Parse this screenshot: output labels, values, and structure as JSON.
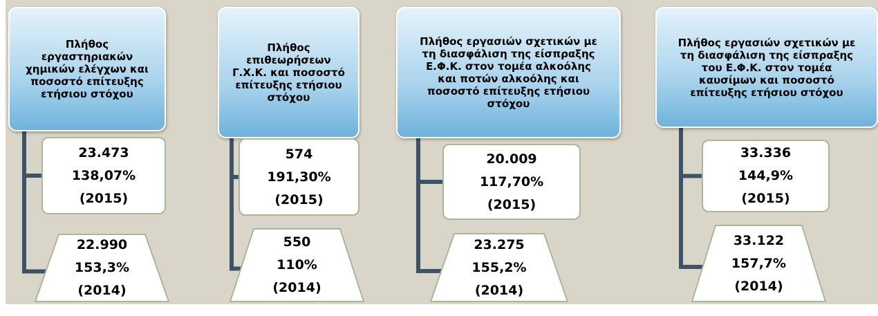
{
  "columns": [
    {
      "header": [
        "Πλήθος",
        "εργαστηριακών",
        "χημικών ελέγχων και",
        "ποσοστό επίτευξης",
        "ετήσιου στόχου"
      ],
      "current": [
        "23.473",
        "138,07%",
        "(2015)"
      ],
      "previous": [
        "22.990",
        "153,3%",
        "(2014)"
      ]
    },
    {
      "header": [
        "Πλήθος",
        "επιθεωρήσεων",
        "Γ.Χ.Κ. και ποσοστό",
        "επίτευξης ετήσιου",
        "στόχου"
      ],
      "current": [
        "574",
        "191,30%",
        "(2015)"
      ],
      "previous": [
        "550",
        "110%",
        "(2014)"
      ]
    },
    {
      "header": [
        "Πλήθος εργασιών σχετικών με",
        "τη διασφάλιση της είσπραξης",
        "Ε.Φ.Κ. στον τομέα αλκοόλης",
        "και ποτών αλκοόλης και",
        "ποσοστό επίτευξης ετήσιου",
        "στόχου"
      ],
      "current": [
        "20.009",
        "117,70%",
        "(2015)"
      ],
      "previous": [
        "23.275",
        "155,2%",
        "(2014)"
      ]
    },
    {
      "header": [
        "Πλήθος εργασιών σχετικών με",
        "τη διασφάλιση της είσπραξης",
        "του Ε.Φ.Κ. στον τομέα",
        "καυσίμων και ποσοστό",
        "επίτευξης ετήσιου στόχου"
      ],
      "current": [
        "33.336",
        "144,9%",
        "(2015)"
      ],
      "previous": [
        "33.122",
        "157,7%",
        "(2014)"
      ]
    }
  ]
}
